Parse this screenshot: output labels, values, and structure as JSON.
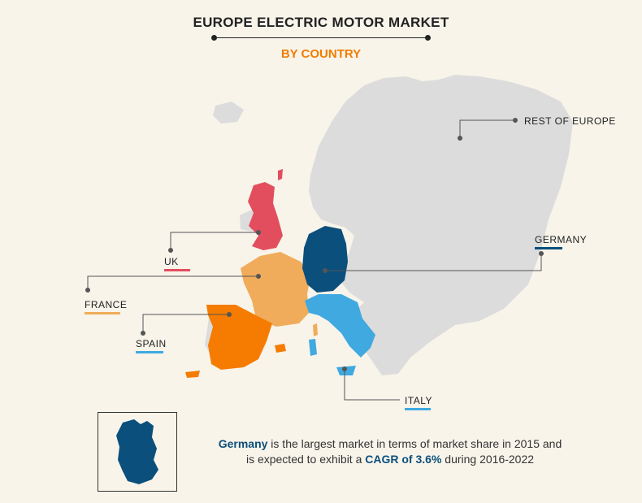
{
  "title": "EUROPE ELECTRIC MOTOR MARKET",
  "subtitle": "BY COUNTRY",
  "colors": {
    "uk": "#e24e5e",
    "france": "#f0ac5a",
    "spain": "#f57c00",
    "italy": "#3fa9e0",
    "germany": "#0b4f7c",
    "rest_of_europe": "#dcdcdc",
    "title_accent": "#ef7d00"
  },
  "labels": {
    "uk": "UK",
    "france": "FRANCE",
    "spain": "SPAIN",
    "italy": "ITALY",
    "germany": "GERMANY",
    "rest_of_europe": "REST OF EUROPE"
  },
  "caption": {
    "leader": "Germany",
    "text_1": " is the largest market in terms of market share in 2015 and",
    "text_2": "is expected to exhibit a ",
    "cagr": "CAGR of 3.6%",
    "text_3": " during 2016-2022"
  }
}
